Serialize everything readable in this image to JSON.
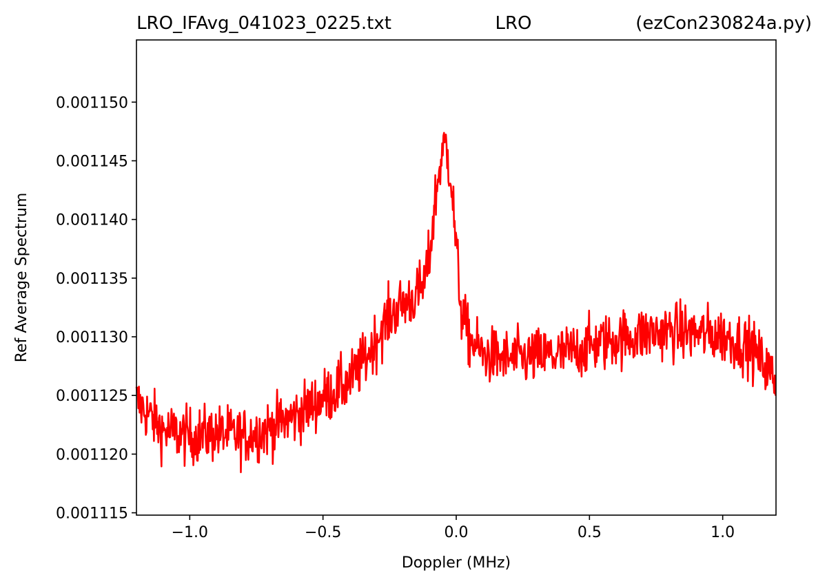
{
  "title": {
    "left": "LRO_IFAvg_041023_0225.txt",
    "center": "LRO",
    "right": "(ezCon230824a.py)"
  },
  "chart_data": {
    "type": "line",
    "xlabel": "Doppler (MHz)",
    "ylabel": "Ref Average Spectrum",
    "xlim": [
      -1.2,
      1.2
    ],
    "ylim": [
      0.0011148,
      0.0011553
    ],
    "xticks": [
      -1.0,
      -0.5,
      0.0,
      0.5,
      1.0
    ],
    "xtick_labels": [
      "−1.0",
      "−0.5",
      "0.0",
      "0.5",
      "1.0"
    ],
    "yticks": [
      0.001115,
      0.00112,
      0.001125,
      0.00113,
      0.001135,
      0.00114,
      0.001145,
      0.00115
    ],
    "ytick_labels": [
      "0.001115",
      "0.001120",
      "0.001125",
      "0.001130",
      "0.001135",
      "0.001140",
      "0.001145",
      "0.001150"
    ],
    "grid": false,
    "series": [
      {
        "color": "#ff0000",
        "x": [
          -1.2,
          -1.1,
          -1.0,
          -0.9,
          -0.8,
          -0.7,
          -0.6,
          -0.5,
          -0.4,
          -0.35,
          -0.3,
          -0.25,
          -0.2,
          -0.15,
          -0.12,
          -0.1,
          -0.08,
          -0.06,
          -0.04,
          -0.02,
          0.0,
          0.02,
          0.05,
          0.1,
          0.2,
          0.3,
          0.4,
          0.5,
          0.6,
          0.7,
          0.8,
          0.9,
          1.0,
          1.1,
          1.15,
          1.2
        ],
        "y": [
          0.0011245,
          0.001122,
          0.0011215,
          0.0011218,
          0.0011215,
          0.0011222,
          0.0011233,
          0.0011248,
          0.0011262,
          0.0011278,
          0.0011298,
          0.0011318,
          0.0011328,
          0.0011335,
          0.0011345,
          0.0011368,
          0.0011415,
          0.0011448,
          0.0011465,
          0.0011438,
          0.0011375,
          0.001132,
          0.0011298,
          0.0011285,
          0.0011281,
          0.0011283,
          0.0011285,
          0.0011292,
          0.0011298,
          0.0011302,
          0.0011305,
          0.0011303,
          0.0011301,
          0.0011292,
          0.0011278,
          0.0011262
        ],
        "noise_amplitude": 2.2e-06
      }
    ]
  }
}
